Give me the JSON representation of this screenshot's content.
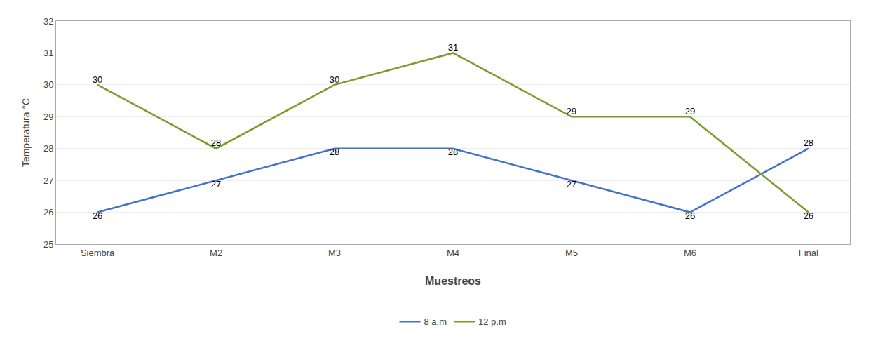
{
  "chart_data": {
    "type": "line",
    "categories": [
      "Siembra",
      "M2",
      "M3",
      "M4",
      "M5",
      "M6",
      "Final"
    ],
    "series": [
      {
        "name": "8 a.m",
        "color": "#4472C4",
        "values": [
          26,
          27,
          28,
          28,
          27,
          26,
          28
        ]
      },
      {
        "name": "12 p.m",
        "color": "#7B9C2A",
        "values": [
          30,
          28,
          30,
          31,
          29,
          29,
          26
        ]
      }
    ],
    "xlabel": "Muestreos",
    "ylabel": "Temperatura °C",
    "ylim": [
      25,
      32
    ],
    "yticks": [
      25,
      26,
      27,
      28,
      29,
      30,
      31,
      32
    ],
    "grid": true,
    "legend": "bottom",
    "data_labels": true
  }
}
